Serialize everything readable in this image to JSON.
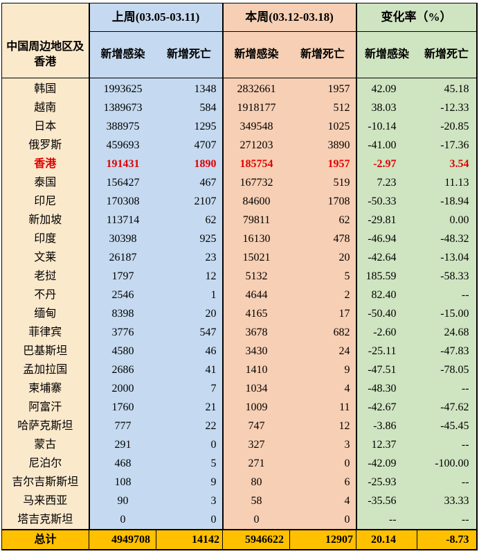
{
  "header": {
    "last_week": "上周(03.05-03.11)",
    "this_week": "本周(03.12-03.18)",
    "change": "变化率（%）",
    "region": "中国周边地区及香港",
    "new_cases": "新增感染",
    "new_deaths": "新增死亡"
  },
  "rows": [
    {
      "name": "韩国",
      "lw_cases": "1993625",
      "lw_deaths": "1348",
      "tw_cases": "2832661",
      "tw_deaths": "1957",
      "chg_cases": "42.09",
      "chg_deaths": "45.18"
    },
    {
      "name": "越南",
      "lw_cases": "1389673",
      "lw_deaths": "584",
      "tw_cases": "1918177",
      "tw_deaths": "512",
      "chg_cases": "38.03",
      "chg_deaths": "-12.33"
    },
    {
      "name": "日本",
      "lw_cases": "388975",
      "lw_deaths": "1295",
      "tw_cases": "349548",
      "tw_deaths": "1025",
      "chg_cases": "-10.14",
      "chg_deaths": "-20.85"
    },
    {
      "name": "俄罗斯",
      "lw_cases": "459693",
      "lw_deaths": "4707",
      "tw_cases": "271203",
      "tw_deaths": "3890",
      "chg_cases": "-41.00",
      "chg_deaths": "-17.36"
    },
    {
      "name": "香港",
      "lw_cases": "191431",
      "lw_deaths": "1890",
      "tw_cases": "185754",
      "tw_deaths": "1957",
      "chg_cases": "-2.97",
      "chg_deaths": "3.54"
    },
    {
      "name": "泰国",
      "lw_cases": "156427",
      "lw_deaths": "467",
      "tw_cases": "167732",
      "tw_deaths": "519",
      "chg_cases": "7.23",
      "chg_deaths": "11.13"
    },
    {
      "name": "印尼",
      "lw_cases": "170308",
      "lw_deaths": "2107",
      "tw_cases": "84600",
      "tw_deaths": "1708",
      "chg_cases": "-50.33",
      "chg_deaths": "-18.94"
    },
    {
      "name": "新加坡",
      "lw_cases": "113714",
      "lw_deaths": "62",
      "tw_cases": "79811",
      "tw_deaths": "62",
      "chg_cases": "-29.81",
      "chg_deaths": "0.00"
    },
    {
      "name": "印度",
      "lw_cases": "30398",
      "lw_deaths": "925",
      "tw_cases": "16130",
      "tw_deaths": "478",
      "chg_cases": "-46.94",
      "chg_deaths": "-48.32"
    },
    {
      "name": "文莱",
      "lw_cases": "26187",
      "lw_deaths": "23",
      "tw_cases": "15021",
      "tw_deaths": "20",
      "chg_cases": "-42.64",
      "chg_deaths": "-13.04"
    },
    {
      "name": "老挝",
      "lw_cases": "1797",
      "lw_deaths": "12",
      "tw_cases": "5132",
      "tw_deaths": "5",
      "chg_cases": "185.59",
      "chg_deaths": "-58.33"
    },
    {
      "name": "不丹",
      "lw_cases": "2546",
      "lw_deaths": "1",
      "tw_cases": "4644",
      "tw_deaths": "2",
      "chg_cases": "82.40",
      "chg_deaths": "--"
    },
    {
      "name": "缅甸",
      "lw_cases": "8398",
      "lw_deaths": "20",
      "tw_cases": "4165",
      "tw_deaths": "17",
      "chg_cases": "-50.40",
      "chg_deaths": "-15.00"
    },
    {
      "name": "菲律宾",
      "lw_cases": "3776",
      "lw_deaths": "547",
      "tw_cases": "3678",
      "tw_deaths": "682",
      "chg_cases": "-2.60",
      "chg_deaths": "24.68"
    },
    {
      "name": "巴基斯坦",
      "lw_cases": "4580",
      "lw_deaths": "46",
      "tw_cases": "3430",
      "tw_deaths": "24",
      "chg_cases": "-25.11",
      "chg_deaths": "-47.83"
    },
    {
      "name": "孟加拉国",
      "lw_cases": "2686",
      "lw_deaths": "41",
      "tw_cases": "1410",
      "tw_deaths": "9",
      "chg_cases": "-47.51",
      "chg_deaths": "-78.05"
    },
    {
      "name": "柬埔寨",
      "lw_cases": "2000",
      "lw_deaths": "7",
      "tw_cases": "1034",
      "tw_deaths": "4",
      "chg_cases": "-48.30",
      "chg_deaths": "--"
    },
    {
      "name": "阿富汗",
      "lw_cases": "1760",
      "lw_deaths": "21",
      "tw_cases": "1009",
      "tw_deaths": "11",
      "chg_cases": "-42.67",
      "chg_deaths": "-47.62"
    },
    {
      "name": "哈萨克斯坦",
      "lw_cases": "777",
      "lw_deaths": "22",
      "tw_cases": "747",
      "tw_deaths": "12",
      "chg_cases": "-3.86",
      "chg_deaths": "-45.45"
    },
    {
      "name": "蒙古",
      "lw_cases": "291",
      "lw_deaths": "0",
      "tw_cases": "327",
      "tw_deaths": "3",
      "chg_cases": "12.37",
      "chg_deaths": "--"
    },
    {
      "name": "尼泊尔",
      "lw_cases": "468",
      "lw_deaths": "5",
      "tw_cases": "271",
      "tw_deaths": "0",
      "chg_cases": "-42.09",
      "chg_deaths": "-100.00"
    },
    {
      "name": "吉尔吉斯斯坦",
      "lw_cases": "108",
      "lw_deaths": "9",
      "tw_cases": "80",
      "tw_deaths": "6",
      "chg_cases": "-25.93",
      "chg_deaths": "--"
    },
    {
      "name": "马来西亚",
      "lw_cases": "90",
      "lw_deaths": "3",
      "tw_cases": "58",
      "tw_deaths": "4",
      "chg_cases": "-35.56",
      "chg_deaths": "33.33"
    },
    {
      "name": "塔吉克斯坦",
      "lw_cases": "0",
      "lw_deaths": "0",
      "tw_cases": "0",
      "tw_deaths": "0",
      "chg_cases": "--",
      "chg_deaths": "--"
    }
  ],
  "highlight_row": "香港",
  "highlight_color": "#e00000",
  "total": {
    "name": "总计",
    "lw_cases": "4949708",
    "lw_deaths": "14142",
    "tw_cases": "5946622",
    "tw_deaths": "12907",
    "chg_cases": "20.14",
    "chg_deaths": "-8.73"
  },
  "colors": {
    "region": "#fbe9cc",
    "last_week": "#c5daf0",
    "this_week": "#f7cfb4",
    "change": "#cfe4c1",
    "total": "#ffc000"
  }
}
